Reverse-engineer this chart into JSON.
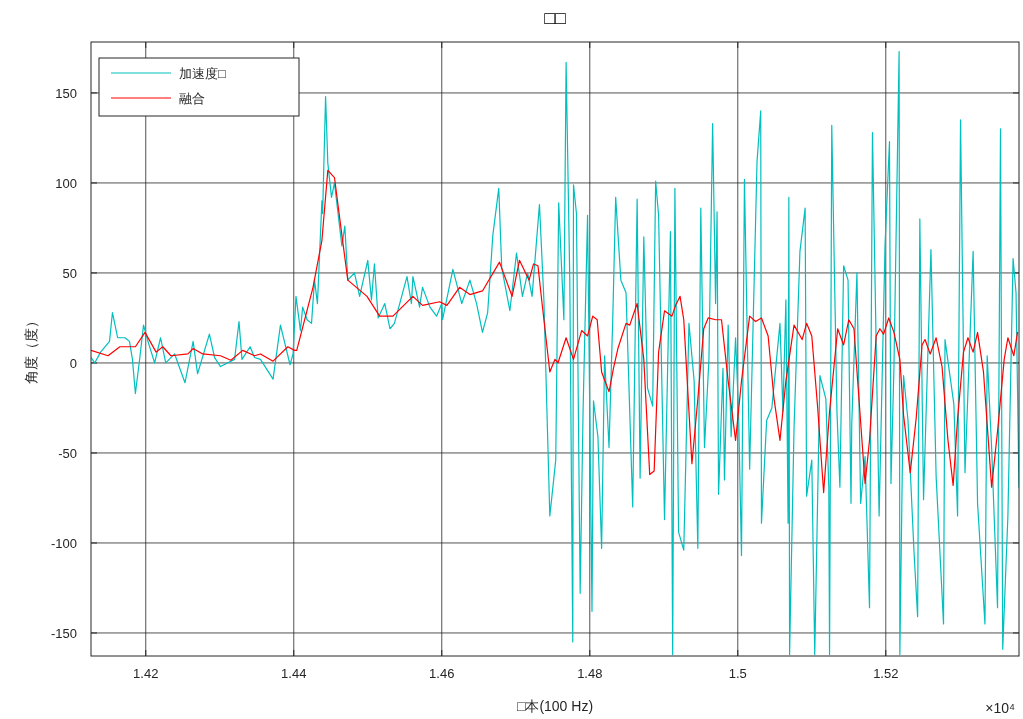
{
  "chart_data": {
    "type": "line",
    "title": "□□",
    "xlabel": "□本(100 Hz)",
    "ylabel": "角度（度）",
    "annotations": [
      "×10⁴"
    ],
    "xlim": [
      1.4126,
      1.538
    ],
    "ylim": [
      -162.8,
      178.3
    ],
    "xticks": [
      1.42,
      1.44,
      1.46,
      1.48,
      1.5,
      1.52
    ],
    "yticks": [
      -150,
      -100,
      -50,
      0,
      50,
      100,
      150
    ],
    "grid": true,
    "legend": "top left",
    "line_style": "solid",
    "marker": "none",
    "series": [
      {
        "name": "加速度□",
        "color": "#00bfbf",
        "x": [
          1.4126,
          1.4131,
          1.4139,
          1.4151,
          1.4155,
          1.4162,
          1.4172,
          1.4178,
          1.4182,
          1.4186,
          1.4192,
          1.4197,
          1.4203,
          1.4212,
          1.422,
          1.4227,
          1.4239,
          1.4253,
          1.4264,
          1.427,
          1.4286,
          1.4293,
          1.4301,
          1.432,
          1.4326,
          1.433,
          1.4341,
          1.4347,
          1.4355,
          1.4372,
          1.4382,
          1.4395,
          1.4399,
          1.4403,
          1.4409,
          1.4412,
          1.4418,
          1.4424,
          1.4428,
          1.4432,
          1.4438,
          1.4439,
          1.4443,
          1.4446,
          1.4451,
          1.4455,
          1.4465,
          1.4469,
          1.4473,
          1.4482,
          1.4489,
          1.45,
          1.4505,
          1.4509,
          1.4514,
          1.4523,
          1.453,
          1.4536,
          1.4553,
          1.4559,
          1.4561,
          1.457,
          1.4574,
          1.4584,
          1.4593,
          1.46,
          1.4601,
          1.4615,
          1.4627,
          1.4638,
          1.4647,
          1.4655,
          1.4662,
          1.4669,
          1.4677,
          1.4681,
          1.4692,
          1.4701,
          1.4709,
          1.4716,
          1.4722,
          1.4732,
          1.4738,
          1.4746,
          1.4754,
          1.4758,
          1.4765,
          1.4768,
          1.4773,
          1.4777,
          1.4778,
          1.4782,
          1.4787,
          1.4791,
          1.4797,
          1.4803,
          1.4805,
          1.4811,
          1.4816,
          1.482,
          1.4826,
          1.4831,
          1.4835,
          1.4842,
          1.4849,
          1.4858,
          1.4864,
          1.4868,
          1.4873,
          1.4878,
          1.4885,
          1.4889,
          1.4893,
          1.4901,
          1.4909,
          1.4912,
          1.4915,
          1.492,
          1.4927,
          1.4934,
          1.4941,
          1.4946,
          1.495,
          1.4955,
          1.4961,
          1.4966,
          1.497,
          1.4972,
          1.4974,
          1.498,
          1.4982,
          1.4987,
          1.4991,
          1.4997,
          1.5001,
          1.5005,
          1.5009,
          1.5016,
          1.5026,
          1.5031,
          1.5032,
          1.5039,
          1.5046,
          1.5057,
          1.5061,
          1.5065,
          1.5068,
          1.5069,
          1.507,
          1.5076,
          1.5084,
          1.5091,
          1.5093,
          1.51,
          1.5104,
          1.5111,
          1.5119,
          1.5123,
          1.5124,
          1.5127,
          1.5134,
          1.5138,
          1.5143,
          1.5149,
          1.5153,
          1.5154,
          1.5161,
          1.5166,
          1.5172,
          1.5178,
          1.5182,
          1.5191,
          1.5199,
          1.5205,
          1.5207,
          1.5211,
          1.5218,
          1.5219,
          1.5224,
          1.523,
          1.5238,
          1.5243,
          1.5246,
          1.5251,
          1.5261,
          1.5268,
          1.5278,
          1.528,
          1.5292,
          1.5297,
          1.5301,
          1.5307,
          1.5318,
          1.5324,
          1.5334,
          1.5337,
          1.5343,
          1.5351,
          1.5355,
          1.5358,
          1.5365,
          1.5372,
          1.5376,
          1.538
        ],
        "values": [
          3,
          0,
          6,
          12,
          28,
          14,
          14,
          12,
          2,
          -17,
          3,
          21,
          12,
          0,
          14,
          0,
          5,
          -11,
          12,
          -6,
          16,
          3,
          -2,
          2,
          23,
          2,
          9,
          3,
          2,
          -9,
          21,
          -1,
          5,
          37,
          18,
          31,
          24,
          22,
          46,
          33,
          90,
          83,
          148,
          111,
          92,
          100,
          65,
          76,
          46,
          50,
          37,
          57,
          35,
          55,
          25,
          33,
          19,
          22,
          48,
          33,
          48,
          31,
          42,
          31,
          26,
          33,
          24,
          52,
          33,
          46,
          33,
          17,
          28,
          71,
          97,
          53,
          29,
          61,
          37,
          50,
          37,
          88,
          35,
          -85,
          -54,
          89,
          24,
          167,
          46,
          -155,
          99,
          83,
          -128,
          -25,
          82,
          -138,
          -21,
          -41,
          -103,
          4,
          -47,
          24,
          92,
          46,
          39,
          -80,
          91,
          -64,
          70,
          -14,
          -24,
          101,
          82,
          -87,
          73,
          -162,
          97,
          -94,
          -104,
          22,
          -10,
          -103,
          86,
          -47,
          2,
          133,
          33,
          84,
          -73,
          -3,
          -65,
          21,
          -41,
          14,
          -27,
          -107,
          102,
          -59,
          112,
          140,
          -89,
          -32,
          -25,
          22,
          -27,
          35,
          -89,
          92,
          -162,
          -36,
          62,
          86,
          -74,
          -54,
          -162,
          -7,
          -20,
          -69,
          -162,
          132,
          -27,
          -69,
          54,
          46,
          -78,
          -34,
          50,
          -78,
          -52,
          -136,
          128,
          -85,
          66,
          123,
          -67,
          -3,
          173,
          -162,
          -7,
          -32,
          -104,
          -141,
          80,
          -76,
          63,
          -63,
          -145,
          13,
          -23,
          -85,
          135,
          -61,
          62,
          -78,
          -145,
          4,
          -47,
          -136,
          130,
          -159,
          -85,
          58,
          39,
          -69
        ]
      },
      {
        "name": "融合",
        "color": "#ff0000",
        "x": [
          1.4126,
          1.4149,
          1.4165,
          1.4186,
          1.4199,
          1.4214,
          1.4223,
          1.4234,
          1.4257,
          1.4264,
          1.4277,
          1.4301,
          1.4315,
          1.4331,
          1.4347,
          1.4355,
          1.4372,
          1.4392,
          1.4401,
          1.4404,
          1.4426,
          1.4438,
          1.4446,
          1.4455,
          1.4466,
          1.4473,
          1.4499,
          1.4516,
          1.4534,
          1.4561,
          1.4574,
          1.4597,
          1.4607,
          1.4624,
          1.4638,
          1.4655,
          1.4678,
          1.4695,
          1.4705,
          1.4718,
          1.4724,
          1.473,
          1.4735,
          1.4746,
          1.4753,
          1.4757,
          1.4768,
          1.4778,
          1.4789,
          1.4797,
          1.4804,
          1.481,
          1.4816,
          1.4826,
          1.4832,
          1.4838,
          1.4849,
          1.4854,
          1.4864,
          1.4873,
          1.4881,
          1.4887,
          1.4893,
          1.4901,
          1.4911,
          1.4916,
          1.4922,
          1.4927,
          1.4938,
          1.4946,
          1.4954,
          1.496,
          1.497,
          1.4978,
          1.4987,
          1.4997,
          1.5005,
          1.5016,
          1.5024,
          1.5032,
          1.5041,
          1.5049,
          1.5057,
          1.5065,
          1.5076,
          1.5087,
          1.5093,
          1.51,
          1.5108,
          1.5116,
          1.5124,
          1.5135,
          1.5143,
          1.515,
          1.5157,
          1.5162,
          1.5172,
          1.5178,
          1.5187,
          1.5192,
          1.5197,
          1.5204,
          1.5211,
          1.5219,
          1.5224,
          1.5233,
          1.5241,
          1.5249,
          1.5253,
          1.526,
          1.5268,
          1.5276,
          1.5284,
          1.5291,
          1.5297,
          1.5305,
          1.5311,
          1.5318,
          1.5324,
          1.5332,
          1.5343,
          1.5351,
          1.536,
          1.5365,
          1.5373,
          1.5378
        ],
        "values": [
          7,
          4,
          9,
          9,
          17,
          6,
          9,
          4,
          5,
          8,
          5,
          4,
          1.5,
          7,
          4,
          5,
          1,
          9,
          7,
          7,
          42,
          68,
          107,
          103,
          68,
          46,
          37,
          26,
          26,
          37,
          32,
          34,
          32,
          42,
          38,
          40,
          56,
          37,
          57,
          46,
          55,
          54,
          35,
          -5,
          2,
          0,
          14,
          2,
          18,
          15,
          26,
          24,
          -5,
          -16,
          -3,
          8,
          22,
          21,
          33,
          2,
          -62,
          -60,
          6,
          29,
          26,
          32,
          37,
          24,
          -56,
          -20,
          19,
          25,
          24,
          24,
          -10,
          -43,
          -10,
          26,
          23,
          25,
          15,
          -20,
          -43,
          -10,
          21,
          13,
          22,
          15,
          -25,
          -72,
          -27,
          19,
          10,
          24,
          19,
          -10,
          -67,
          -43,
          15,
          19,
          16,
          25,
          17,
          2,
          -29,
          -61,
          -31,
          10,
          13,
          5,
          14,
          -2,
          -43,
          -68,
          -31,
          6,
          14,
          6,
          17,
          -5,
          -69,
          -38,
          2,
          14,
          4,
          17
        ]
      }
    ]
  }
}
